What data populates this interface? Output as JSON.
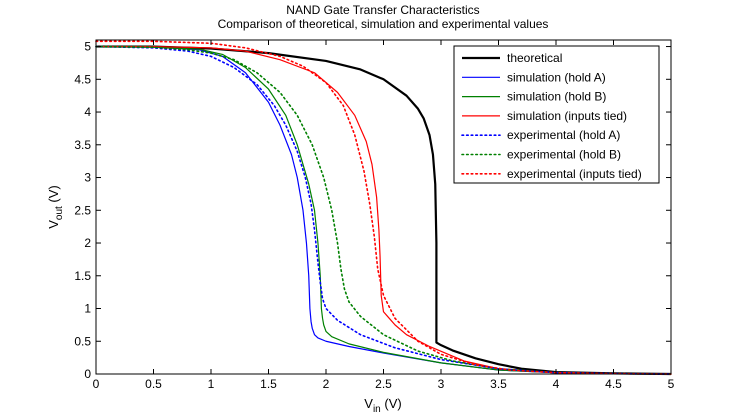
{
  "chart_data": {
    "type": "line",
    "title": "NAND Gate Transfer Characteristics",
    "subtitle": "Comparison of theoretical, simulation and experimental values",
    "xlabel": {
      "main": "V",
      "sub": "in",
      "unit": " (V)"
    },
    "ylabel": {
      "main": "V",
      "sub": "out",
      "unit": " (V)"
    },
    "xlim": [
      0,
      5
    ],
    "ylim": [
      0,
      5.1
    ],
    "xticks": [
      0,
      0.5,
      1,
      1.5,
      2,
      2.5,
      3,
      3.5,
      4,
      4.5,
      5
    ],
    "xtick_labels": [
      "0",
      "0.5",
      "1",
      "1.5",
      "2",
      "2.5",
      "3",
      "3.5",
      "4",
      "4.5",
      "5"
    ],
    "yticks": [
      0,
      0.5,
      1,
      1.5,
      2,
      2.5,
      3,
      3.5,
      4,
      4.5,
      5
    ],
    "ytick_labels": [
      "0",
      "0.5",
      "1",
      "1.5",
      "2",
      "2.5",
      "3",
      "3.5",
      "4",
      "4.5",
      "5"
    ],
    "grid": false,
    "legend_position": "top-right",
    "series": [
      {
        "name": "theoretical",
        "color": "#000000",
        "style": "solid",
        "width": 2.2,
        "x": [
          0,
          0.5,
          1.0,
          1.5,
          2.0,
          2.3,
          2.5,
          2.7,
          2.8,
          2.85,
          2.9,
          2.93,
          2.95,
          2.96,
          2.96,
          2.96,
          2.96,
          2.97,
          3.0,
          3.1,
          3.3,
          3.5,
          3.7,
          4.0,
          4.5,
          5.0
        ],
        "y": [
          5.0,
          5.0,
          4.97,
          4.9,
          4.78,
          4.65,
          4.5,
          4.25,
          4.05,
          3.9,
          3.65,
          3.35,
          2.9,
          2.0,
          1.6,
          1.0,
          0.48,
          0.47,
          0.44,
          0.36,
          0.24,
          0.15,
          0.08,
          0.03,
          0.01,
          0.0
        ]
      },
      {
        "name": "simulation (hold A)",
        "color": "#0000ff",
        "style": "solid",
        "width": 1.2,
        "x": [
          0,
          0.5,
          0.9,
          1.1,
          1.3,
          1.5,
          1.6,
          1.7,
          1.75,
          1.8,
          1.83,
          1.85,
          1.86,
          1.87,
          1.88,
          1.9,
          1.93,
          2.0,
          2.2,
          2.5,
          3.0,
          3.5,
          4.0,
          4.5,
          5.0
        ],
        "y": [
          5.0,
          4.99,
          4.95,
          4.85,
          4.6,
          4.15,
          3.8,
          3.35,
          3.0,
          2.5,
          2.0,
          1.5,
          1.0,
          0.8,
          0.7,
          0.6,
          0.55,
          0.5,
          0.42,
          0.32,
          0.17,
          0.06,
          0.02,
          0.005,
          0.0
        ]
      },
      {
        "name": "simulation (hold B)",
        "color": "#008000",
        "style": "solid",
        "width": 1.2,
        "x": [
          0,
          0.5,
          0.9,
          1.1,
          1.3,
          1.5,
          1.65,
          1.75,
          1.85,
          1.9,
          1.93,
          1.95,
          1.96,
          1.97,
          1.98,
          2.0,
          2.05,
          2.2,
          2.5,
          3.0,
          3.5,
          4.0,
          4.5,
          5.0
        ],
        "y": [
          5.0,
          4.99,
          4.96,
          4.88,
          4.68,
          4.35,
          3.95,
          3.5,
          2.9,
          2.5,
          2.0,
          1.5,
          1.0,
          0.85,
          0.75,
          0.65,
          0.57,
          0.46,
          0.33,
          0.17,
          0.06,
          0.02,
          0.005,
          0.0
        ]
      },
      {
        "name": "simulation (inputs tied)",
        "color": "#ff0000",
        "style": "solid",
        "width": 1.2,
        "x": [
          0,
          0.5,
          1.0,
          1.3,
          1.6,
          1.9,
          2.1,
          2.25,
          2.35,
          2.4,
          2.44,
          2.46,
          2.47,
          2.48,
          2.5,
          2.55,
          2.6,
          2.7,
          2.9,
          3.2,
          3.5,
          4.0,
          4.5,
          5.0
        ],
        "y": [
          5.0,
          5.0,
          4.98,
          4.93,
          4.8,
          4.6,
          4.3,
          3.95,
          3.55,
          3.2,
          2.7,
          2.2,
          1.8,
          1.2,
          0.95,
          0.85,
          0.75,
          0.6,
          0.42,
          0.2,
          0.08,
          0.02,
          0.005,
          0.0
        ]
      },
      {
        "name": "experimental (hold A)",
        "color": "#0000ff",
        "style": "dotted",
        "width": 1.6,
        "x": [
          0,
          0.5,
          0.8,
          1.0,
          1.2,
          1.4,
          1.55,
          1.65,
          1.75,
          1.82,
          1.87,
          1.9,
          1.93,
          1.95,
          1.97,
          2.0,
          2.1,
          2.3,
          2.6,
          3.0,
          3.5,
          4.0,
          4.5,
          5.0
        ],
        "y": [
          5.0,
          4.98,
          4.93,
          4.85,
          4.68,
          4.42,
          4.1,
          3.8,
          3.4,
          3.0,
          2.6,
          2.2,
          1.7,
          1.4,
          1.15,
          1.0,
          0.82,
          0.6,
          0.4,
          0.22,
          0.08,
          0.02,
          0.005,
          0.0
        ]
      },
      {
        "name": "experimental (hold B)",
        "color": "#008000",
        "style": "dotted",
        "width": 1.6,
        "x": [
          0,
          0.5,
          0.8,
          1.0,
          1.2,
          1.4,
          1.6,
          1.75,
          1.88,
          1.98,
          2.05,
          2.1,
          2.13,
          2.16,
          2.2,
          2.3,
          2.5,
          2.8,
          3.1,
          3.5,
          4.0,
          4.5,
          5.0
        ],
        "y": [
          5.0,
          4.99,
          4.95,
          4.9,
          4.8,
          4.6,
          4.3,
          3.95,
          3.5,
          3.0,
          2.5,
          2.0,
          1.6,
          1.3,
          1.1,
          0.88,
          0.6,
          0.35,
          0.2,
          0.08,
          0.02,
          0.005,
          0.0
        ]
      },
      {
        "name": "experimental (inputs tied)",
        "color": "#ff0000",
        "style": "dotted",
        "width": 1.6,
        "x": [
          0,
          0.5,
          1.0,
          1.3,
          1.6,
          1.8,
          2.0,
          2.15,
          2.25,
          2.33,
          2.38,
          2.42,
          2.45,
          2.5,
          2.6,
          2.8,
          3.0,
          3.3,
          3.6,
          4.0,
          4.5,
          5.0
        ],
        "y": [
          5.08,
          5.08,
          5.05,
          4.98,
          4.85,
          4.7,
          4.45,
          4.1,
          3.65,
          3.1,
          2.6,
          2.1,
          1.6,
          1.2,
          0.85,
          0.5,
          0.3,
          0.14,
          0.06,
          0.02,
          0.005,
          0.0
        ]
      }
    ]
  }
}
